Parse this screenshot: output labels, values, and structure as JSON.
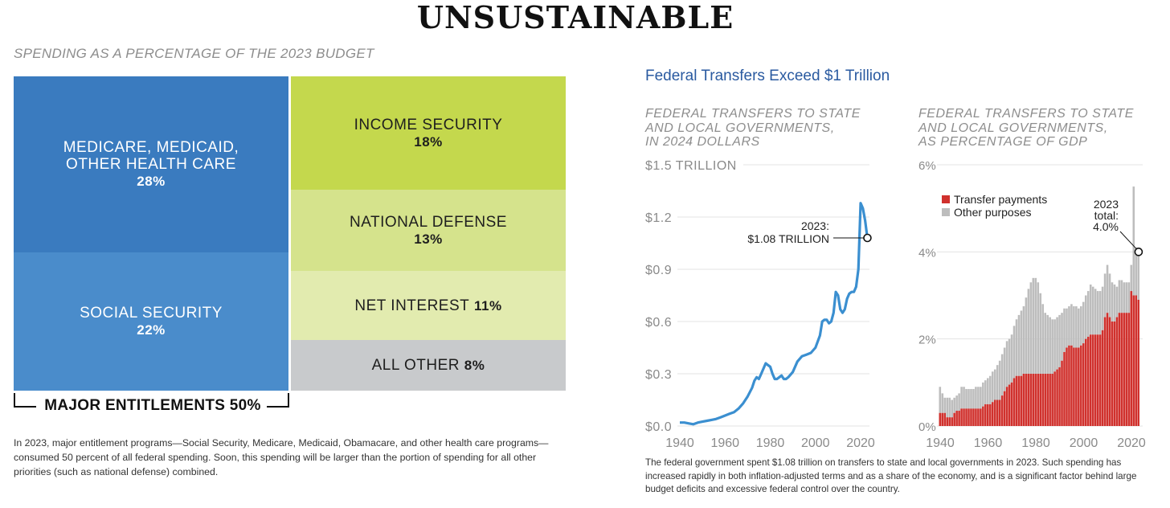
{
  "title": "UNSUSTAINABLE",
  "treemap": {
    "subtitle": "SPENDING AS A PERCENTAGE OF THE 2023 BUDGET",
    "tiles": [
      {
        "label_line1": "MEDICARE, MEDICAID,",
        "label_line2": "OTHER HEALTH CARE",
        "value": "28%",
        "color": "#3a7bbf"
      },
      {
        "label_line1": "SOCIAL SECURITY",
        "value": "22%",
        "color": "#4a8ccb"
      },
      {
        "label_line1": "INCOME SECURITY",
        "value": "18%",
        "color": "#c4d84d"
      },
      {
        "label_line1": "NATIONAL DEFENSE",
        "value": "13%",
        "color": "#d5e38c"
      },
      {
        "label_line1": "NET INTEREST",
        "value": "11%",
        "color": "#e2ebaf"
      },
      {
        "label_line1": "ALL OTHER",
        "value": "8%",
        "color": "#c8cacc"
      }
    ],
    "bracket_label": "MAJOR ENTITLEMENTS 50%",
    "note": "In 2023, major entitlement programs—Social Security, Medicare, Medicaid, Obamacare, and other health care programs—consumed 50 percent of all federal spending. Soon, this spending will be larger than the portion of spending for all other priorities (such as national defense) combined."
  },
  "right_panel": {
    "heading": "Federal Transfers Exceed $1 Trillion",
    "heading_color": "#2a5aa0",
    "note": "The federal government spent $1.08 trillion on transfers to state and local governments in 2023. Such spending has increased rapidly in both inflation-adjusted terms and as a share of the economy, and is a significant factor behind large budget deficits and excessive federal control over the country."
  },
  "chart_data": [
    {
      "type": "line",
      "subtitle_lines": [
        "FEDERAL TRANSFERS TO STATE",
        "AND LOCAL GOVERNMENTS,",
        "IN 2024 DOLLARS"
      ],
      "y_ticks": [
        "$1.5 TRILLION",
        "$1.2",
        "$0.9",
        "$0.6",
        "$0.3",
        "$0.0"
      ],
      "y_tick_values": [
        1.5,
        1.2,
        0.9,
        0.6,
        0.3,
        0.0
      ],
      "x_ticks": [
        "1940",
        "1960",
        "1980",
        "2000",
        "2020"
      ],
      "x_tick_values": [
        1940,
        1960,
        1980,
        2000,
        2020
      ],
      "xlim": [
        1940,
        2023
      ],
      "ylim": [
        0,
        1.5
      ],
      "color": "#3b8fd0",
      "series": [
        {
          "x": [
            1940,
            1942,
            1944,
            1946,
            1948,
            1950,
            1952,
            1954,
            1956,
            1958,
            1960,
            1962,
            1964,
            1966,
            1968,
            1970,
            1972,
            1973,
            1974,
            1975,
            1976,
            1977,
            1978,
            1979,
            1980,
            1981,
            1982,
            1983,
            1984,
            1985,
            1986,
            1987,
            1988,
            1990,
            1992,
            1994,
            1996,
            1998,
            2000,
            2002,
            2003,
            2004,
            2005,
            2006,
            2007,
            2008,
            2009,
            2010,
            2011,
            2012,
            2013,
            2014,
            2015,
            2016,
            2017,
            2018,
            2019,
            2020,
            2021,
            2022,
            2023
          ],
          "y": [
            0.02,
            0.02,
            0.015,
            0.01,
            0.02,
            0.025,
            0.03,
            0.035,
            0.04,
            0.05,
            0.06,
            0.07,
            0.08,
            0.1,
            0.13,
            0.17,
            0.22,
            0.26,
            0.28,
            0.27,
            0.3,
            0.33,
            0.36,
            0.35,
            0.34,
            0.3,
            0.27,
            0.27,
            0.28,
            0.29,
            0.27,
            0.27,
            0.28,
            0.31,
            0.37,
            0.4,
            0.41,
            0.42,
            0.45,
            0.52,
            0.6,
            0.61,
            0.61,
            0.59,
            0.6,
            0.65,
            0.77,
            0.75,
            0.67,
            0.65,
            0.67,
            0.73,
            0.76,
            0.77,
            0.77,
            0.8,
            0.9,
            1.28,
            1.25,
            1.18,
            1.08
          ]
        }
      ],
      "annotation_lines": [
        "2023:",
        "$1.08 TRILLION"
      ],
      "highlight": {
        "x": 2023,
        "y": 1.08
      }
    },
    {
      "type": "bar",
      "stacked": true,
      "subtitle_lines": [
        "FEDERAL TRANSFERS TO STATE",
        "AND LOCAL GOVERNMENTS,",
        "AS PERCENTAGE OF GDP"
      ],
      "y_ticks": [
        "6%",
        "4%",
        "2%",
        "0%"
      ],
      "y_tick_values": [
        6,
        4,
        2,
        0
      ],
      "x_ticks": [
        "1940",
        "1960",
        "1980",
        "2000",
        "2020"
      ],
      "x_tick_values": [
        1940,
        1960,
        1980,
        2000,
        2020
      ],
      "xlim": [
        1940,
        2023
      ],
      "ylim": [
        0,
        6
      ],
      "legend": [
        {
          "name": "Transfer payments",
          "color": "#d0312d"
        },
        {
          "name": "Other purposes",
          "color": "#bdbdbd"
        }
      ],
      "legend_position": "top-left",
      "years": [
        1940,
        1941,
        1942,
        1943,
        1944,
        1945,
        1946,
        1947,
        1948,
        1949,
        1950,
        1951,
        1952,
        1953,
        1954,
        1955,
        1956,
        1957,
        1958,
        1959,
        1960,
        1961,
        1962,
        1963,
        1964,
        1965,
        1966,
        1967,
        1968,
        1969,
        1970,
        1971,
        1972,
        1973,
        1974,
        1975,
        1976,
        1977,
        1978,
        1979,
        1980,
        1981,
        1982,
        1983,
        1984,
        1985,
        1986,
        1987,
        1988,
        1989,
        1990,
        1991,
        1992,
        1993,
        1994,
        1995,
        1996,
        1997,
        1998,
        1999,
        2000,
        2001,
        2002,
        2003,
        2004,
        2005,
        2006,
        2007,
        2008,
        2009,
        2010,
        2011,
        2012,
        2013,
        2014,
        2015,
        2016,
        2017,
        2018,
        2019,
        2020,
        2021,
        2022,
        2023
      ],
      "series": [
        {
          "name": "Transfer payments",
          "values": [
            0.3,
            0.3,
            0.3,
            0.2,
            0.2,
            0.2,
            0.3,
            0.35,
            0.35,
            0.4,
            0.4,
            0.4,
            0.4,
            0.4,
            0.4,
            0.4,
            0.4,
            0.4,
            0.45,
            0.5,
            0.5,
            0.5,
            0.55,
            0.6,
            0.6,
            0.6,
            0.7,
            0.8,
            0.9,
            0.95,
            1.0,
            1.1,
            1.15,
            1.15,
            1.15,
            1.2,
            1.2,
            1.2,
            1.2,
            1.2,
            1.2,
            1.2,
            1.2,
            1.2,
            1.2,
            1.2,
            1.2,
            1.2,
            1.25,
            1.3,
            1.35,
            1.5,
            1.7,
            1.8,
            1.85,
            1.85,
            1.8,
            1.8,
            1.8,
            1.85,
            1.9,
            2.0,
            2.05,
            2.1,
            2.1,
            2.1,
            2.1,
            2.1,
            2.2,
            2.5,
            2.6,
            2.5,
            2.4,
            2.4,
            2.5,
            2.6,
            2.6,
            2.6,
            2.6,
            2.6,
            3.1,
            3.0,
            3.0,
            2.9
          ]
        },
        {
          "name": "Other purposes",
          "values": [
            0.6,
            0.45,
            0.35,
            0.45,
            0.45,
            0.4,
            0.35,
            0.35,
            0.4,
            0.5,
            0.5,
            0.45,
            0.45,
            0.45,
            0.45,
            0.5,
            0.5,
            0.5,
            0.55,
            0.55,
            0.6,
            0.65,
            0.7,
            0.7,
            0.8,
            0.9,
            0.95,
            1.0,
            1.05,
            1.05,
            1.1,
            1.2,
            1.3,
            1.4,
            1.5,
            1.55,
            1.75,
            1.95,
            2.1,
            2.2,
            2.2,
            2.1,
            1.85,
            1.6,
            1.4,
            1.35,
            1.3,
            1.25,
            1.2,
            1.2,
            1.2,
            1.1,
            1.0,
            0.9,
            0.9,
            0.95,
            0.95,
            0.95,
            0.9,
            0.9,
            0.95,
            1.0,
            1.05,
            1.15,
            1.1,
            1.05,
            1.0,
            1.0,
            1.0,
            1.0,
            1.1,
            1.0,
            0.9,
            0.85,
            0.7,
            0.75,
            0.75,
            0.7,
            0.7,
            0.7,
            0.6,
            2.5,
            1.1,
            1.1
          ]
        }
      ],
      "annotation_lines": [
        "2023",
        "total:",
        "4.0%"
      ],
      "highlight": {
        "x": 2023,
        "y": 4.0
      }
    }
  ]
}
